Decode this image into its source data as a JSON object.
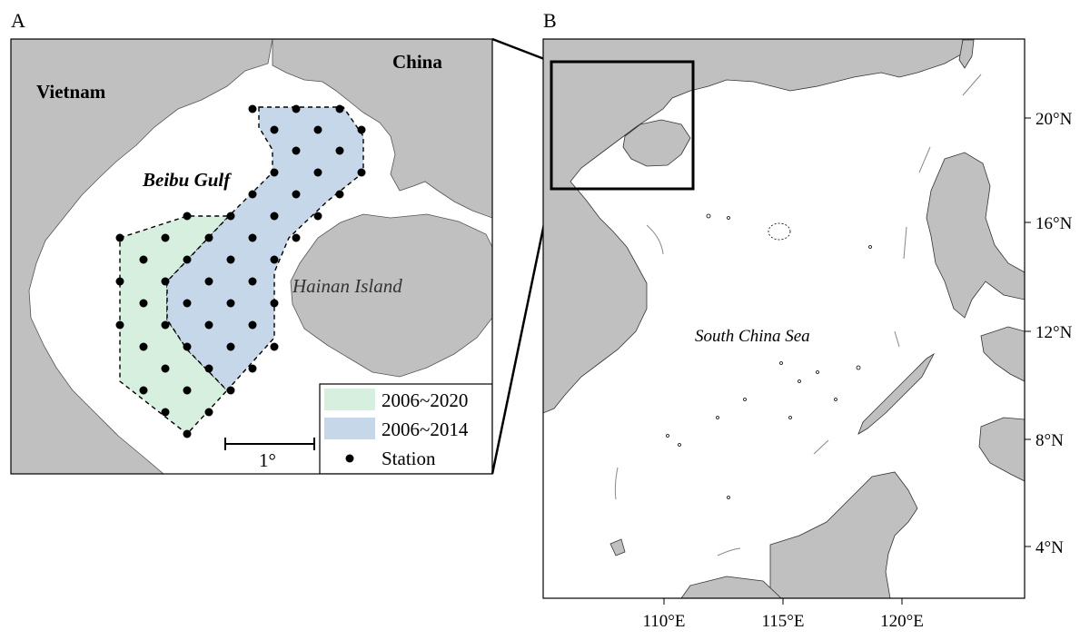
{
  "panel_a": {
    "label": "A",
    "countries": {
      "vietnam": "Vietnam",
      "china": "China"
    },
    "gulf_name": "Beibu Gulf",
    "island_name": "Hainan Island",
    "scale_bar_label": "1°",
    "legend": {
      "green_label": "2006~2020",
      "blue_label": "2006~2014",
      "station_label": "Station"
    },
    "colors": {
      "land": "#c0c0c0",
      "green_zone": "#d6efdf",
      "blue_zone": "#c7d7ea",
      "station": "#000000"
    }
  },
  "panel_b": {
    "label": "B",
    "sea_name": "South China Sea",
    "x_ticks": [
      "110°E",
      "115°E",
      "120°E"
    ],
    "y_ticks": [
      "20°N",
      "16°N",
      "12°N",
      "8°N",
      "4°N"
    ]
  }
}
